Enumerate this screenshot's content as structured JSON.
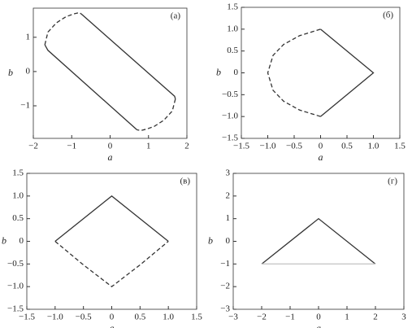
{
  "chart_data": [
    {
      "type": "line",
      "panel_label": "(а)",
      "xlabel": "a",
      "ylabel": "b",
      "xlim": [
        -2,
        2
      ],
      "ylim": [
        -1.95,
        1.85
      ],
      "xticks": [
        {
          "value": -2,
          "label": "−2"
        },
        {
          "value": -1,
          "label": "−1"
        },
        0,
        1,
        2
      ],
      "yticks": [
        {
          "value": -1,
          "label": "−1"
        },
        0,
        1
      ],
      "series": [
        {
          "style": "solid",
          "color": "#333333",
          "x": [
            -0.75,
            1.68,
            1.7
          ],
          "values": [
            1.68,
            -0.72,
            -0.8
          ]
        },
        {
          "style": "dashed",
          "color": "#333333",
          "x": [
            1.7,
            1.62,
            1.4,
            1.15,
            0.95,
            0.8,
            0.7
          ],
          "values": [
            -0.8,
            -1.15,
            -1.42,
            -1.6,
            -1.68,
            -1.72,
            -1.7
          ]
        },
        {
          "style": "solid",
          "color": "#333333",
          "x": [
            0.7,
            -1.62,
            -1.7
          ],
          "values": [
            -1.7,
            0.62,
            0.78
          ]
        },
        {
          "style": "dashed",
          "color": "#333333",
          "x": [
            -1.7,
            -1.62,
            -1.4,
            -1.15,
            -0.95,
            -0.8,
            -0.75
          ],
          "values": [
            0.78,
            1.15,
            1.42,
            1.6,
            1.68,
            1.72,
            1.68
          ]
        }
      ]
    },
    {
      "type": "line",
      "panel_label": "(б)",
      "xlabel": "a",
      "ylabel": "b",
      "xlim": [
        -1.5,
        1.5
      ],
      "ylim": [
        -1.5,
        1.5
      ],
      "xticks": [
        {
          "value": -1.5,
          "label": "−1.5"
        },
        {
          "value": -1,
          "label": "−1.0"
        },
        {
          "value": -0.5,
          "label": "−0.5"
        },
        0,
        0.5,
        {
          "value": 1,
          "label": "1.0"
        },
        1.5
      ],
      "yticks": [
        {
          "value": -1.5,
          "label": "−1.5"
        },
        {
          "value": -1,
          "label": "−1.0"
        },
        {
          "value": -0.5,
          "label": "−0.5"
        },
        0,
        0.5,
        {
          "value": 1,
          "label": "1.0"
        },
        1.5
      ],
      "series": [
        {
          "style": "solid",
          "color": "#333333",
          "x": [
            0,
            1,
            0
          ],
          "values": [
            1,
            0,
            -1
          ]
        },
        {
          "style": "dashed",
          "color": "#333333",
          "x": [
            0,
            -0.4,
            -0.7,
            -0.9,
            -1,
            -0.9,
            -0.7,
            -0.4,
            0
          ],
          "values": [
            -1,
            -0.85,
            -0.65,
            -0.4,
            0,
            0.4,
            0.65,
            0.85,
            1
          ]
        }
      ]
    },
    {
      "type": "line",
      "panel_label": "(в)",
      "xlabel": "a",
      "ylabel": "b",
      "xlim": [
        -1.5,
        1.5
      ],
      "ylim": [
        -1.5,
        1.5
      ],
      "xticks": [
        {
          "value": -1.5,
          "label": "−1.5"
        },
        {
          "value": -1,
          "label": "−1.0"
        },
        {
          "value": -0.5,
          "label": "−0.5"
        },
        0,
        0.5,
        {
          "value": 1,
          "label": "1.0"
        },
        1.5
      ],
      "yticks": [
        {
          "value": -1.5,
          "label": "−1.5"
        },
        {
          "value": -1,
          "label": "−1.0"
        },
        {
          "value": -0.5,
          "label": "−0.5"
        },
        0,
        0.5,
        {
          "value": 1,
          "label": "1.0"
        },
        1.5
      ],
      "series": [
        {
          "style": "solid",
          "color": "#333333",
          "x": [
            -1,
            0,
            1
          ],
          "values": [
            0,
            1,
            0
          ]
        },
        {
          "style": "dashed",
          "color": "#333333",
          "x": [
            -1,
            -0.5,
            0,
            0.5,
            1
          ],
          "values": [
            0,
            -0.52,
            -1,
            -0.52,
            0
          ]
        }
      ]
    },
    {
      "type": "line",
      "panel_label": "(г)",
      "xlabel": "a",
      "ylabel": "b",
      "xlim": [
        -3,
        3
      ],
      "ylim": [
        -3,
        3
      ],
      "xticks": [
        {
          "value": -3,
          "label": "−3"
        },
        {
          "value": -2,
          "label": "−2"
        },
        {
          "value": -1,
          "label": "−1"
        },
        0,
        1,
        2,
        3
      ],
      "yticks": [
        {
          "value": -3,
          "label": "−3"
        },
        {
          "value": -2,
          "label": "−2"
        },
        {
          "value": -1,
          "label": "−1"
        },
        0,
        1,
        2,
        3
      ],
      "series": [
        {
          "style": "solid",
          "color": "#333333",
          "x": [
            -2,
            0,
            2
          ],
          "values": [
            -1,
            1,
            -1
          ]
        },
        {
          "style": "solid",
          "color": "#c8c8c8",
          "x": [
            -2,
            2
          ],
          "values": [
            -1,
            -1
          ]
        }
      ]
    }
  ]
}
